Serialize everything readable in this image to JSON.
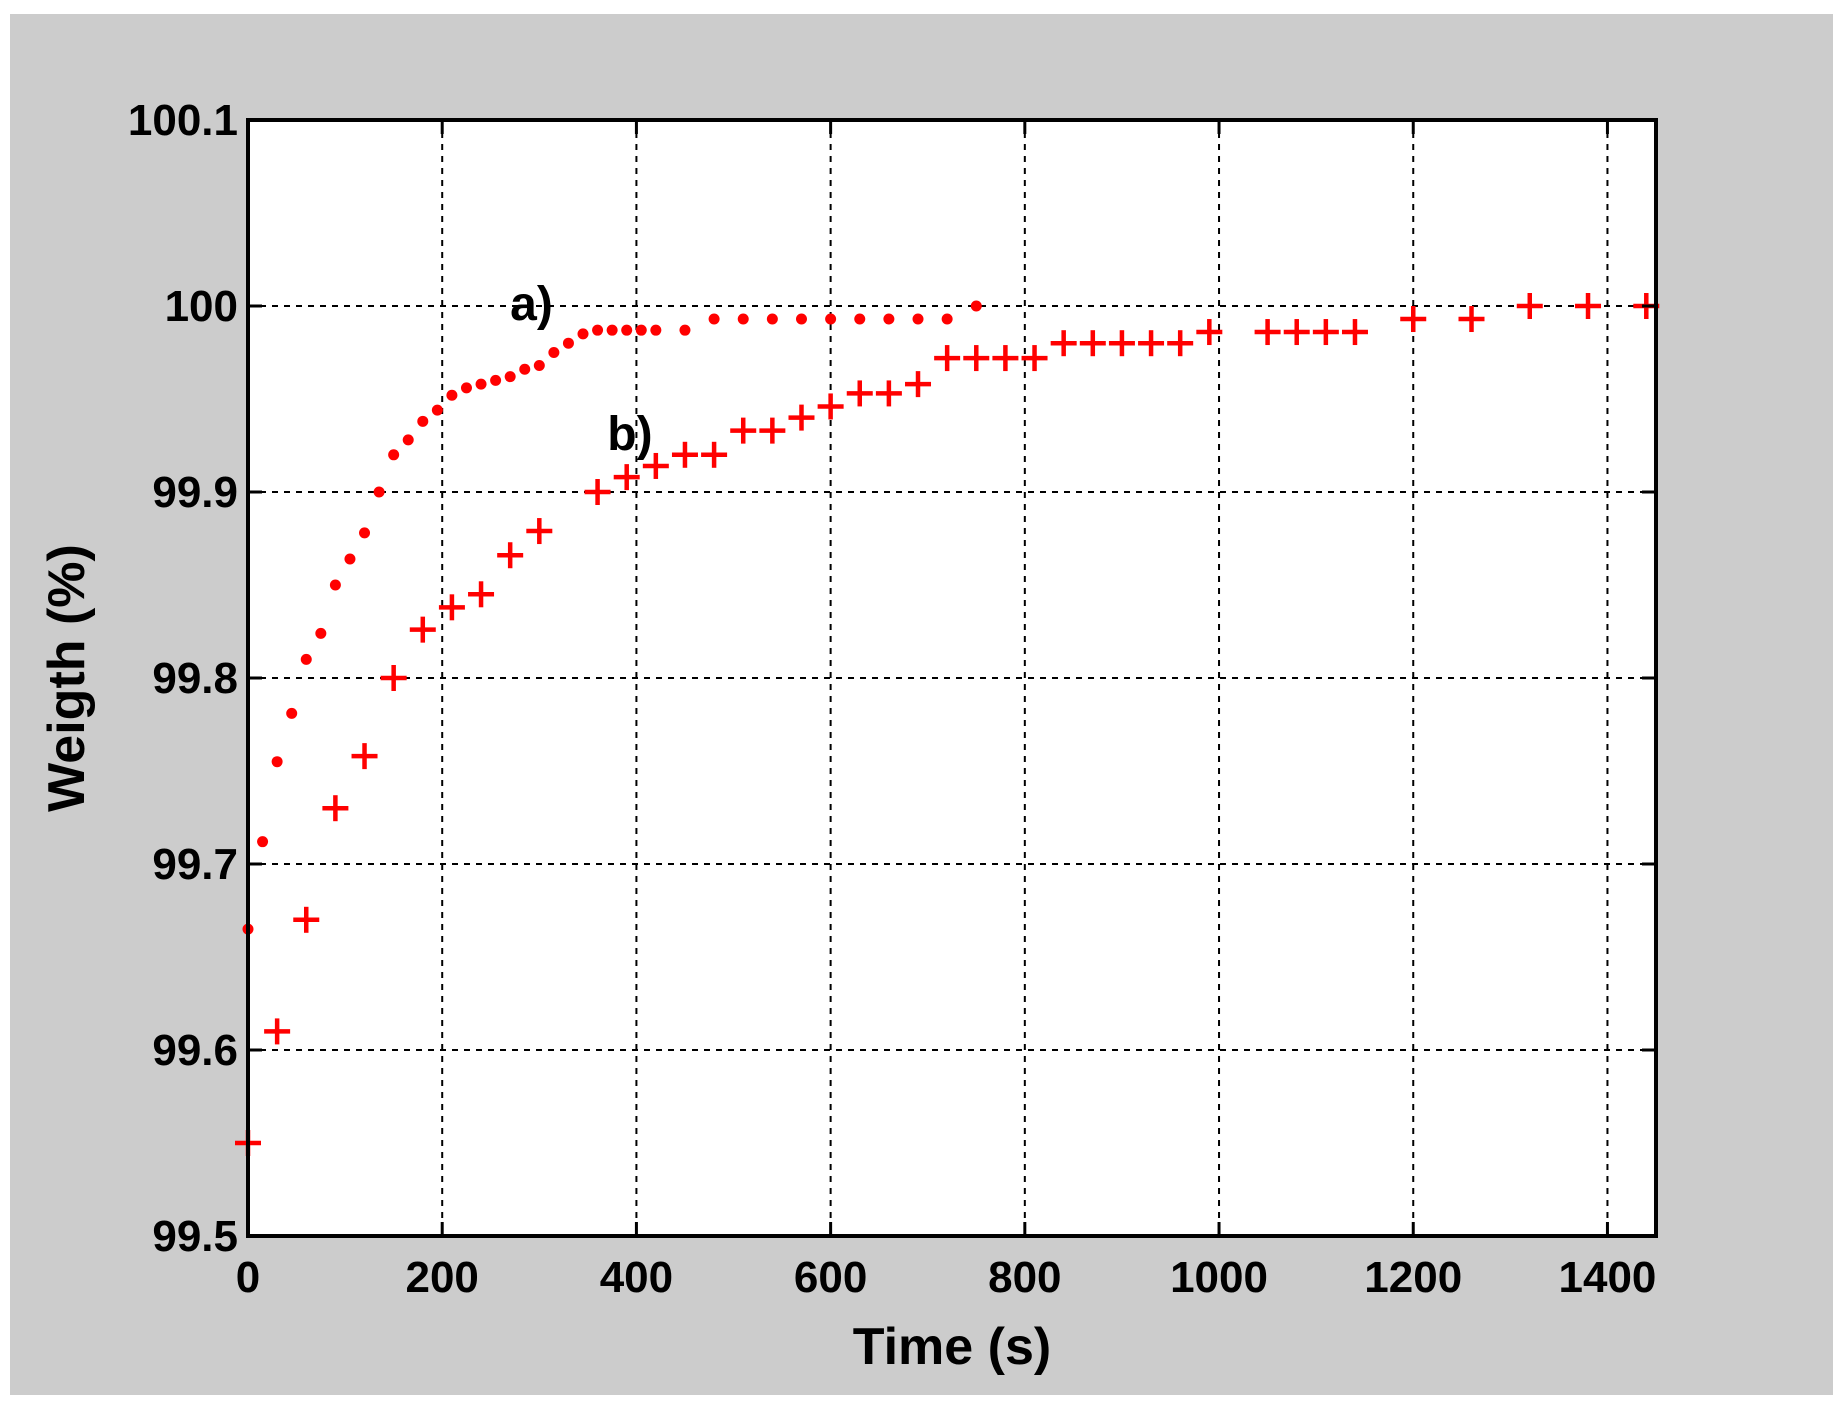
{
  "chart_data": {
    "type": "scatter",
    "title": "",
    "xlabel": "Time (s)",
    "ylabel": "Weigth (%)",
    "xlim": [
      0,
      1450
    ],
    "ylim": [
      99.5,
      100.1
    ],
    "x_ticks": [
      0,
      200,
      400,
      600,
      800,
      1000,
      1200,
      1400
    ],
    "y_ticks": [
      99.5,
      99.6,
      99.7,
      99.8,
      99.9,
      100,
      100.1
    ],
    "y_tick_labels": [
      "99.5",
      "99.6",
      "99.7",
      "99.8",
      "99.9",
      "100",
      "100.1"
    ],
    "grid": true,
    "marker_color": "#ff0000",
    "series": [
      {
        "marker": "dot",
        "x": [
          0,
          15,
          30,
          45,
          60,
          75,
          90,
          105,
          120,
          135,
          150,
          165,
          180,
          195,
          210,
          225,
          240,
          255,
          270,
          285,
          300,
          315,
          330,
          345,
          360,
          375,
          390,
          405,
          420,
          450,
          480,
          510,
          540,
          570,
          600,
          630,
          660,
          690,
          720,
          750
        ],
        "y": [
          99.665,
          99.712,
          99.755,
          99.781,
          99.81,
          99.824,
          99.85,
          99.864,
          99.878,
          99.9,
          99.92,
          99.928,
          99.938,
          99.944,
          99.952,
          99.956,
          99.958,
          99.96,
          99.962,
          99.966,
          99.968,
          99.975,
          99.98,
          99.985,
          99.987,
          99.987,
          99.987,
          99.987,
          99.987,
          99.987,
          99.993,
          99.993,
          99.993,
          99.993,
          99.993,
          99.993,
          99.993,
          99.993,
          99.993,
          100.0
        ]
      },
      {
        "marker": "plus",
        "x": [
          0,
          30,
          60,
          90,
          120,
          150,
          180,
          210,
          240,
          270,
          300,
          360,
          390,
          420,
          450,
          480,
          510,
          540,
          570,
          600,
          630,
          660,
          690,
          720,
          750,
          780,
          810,
          840,
          870,
          900,
          930,
          960,
          990,
          1050,
          1080,
          1110,
          1140,
          1200,
          1260,
          1320,
          1380,
          1440
        ],
        "y": [
          99.55,
          99.61,
          99.67,
          99.73,
          99.758,
          99.8,
          99.826,
          99.838,
          99.845,
          99.866,
          99.879,
          99.9,
          99.908,
          99.914,
          99.92,
          99.92,
          99.933,
          99.933,
          99.94,
          99.946,
          99.953,
          99.953,
          99.958,
          99.972,
          99.972,
          99.972,
          99.972,
          99.98,
          99.98,
          99.98,
          99.98,
          99.98,
          99.986,
          99.986,
          99.986,
          99.986,
          99.986,
          99.993,
          99.993,
          100.0,
          100.0,
          100.0
        ]
      }
    ],
    "annotations": [
      {
        "text": "a)",
        "x": 270,
        "y": 100.0
      },
      {
        "text": "b)",
        "x": 370,
        "y": 99.93
      }
    ]
  }
}
